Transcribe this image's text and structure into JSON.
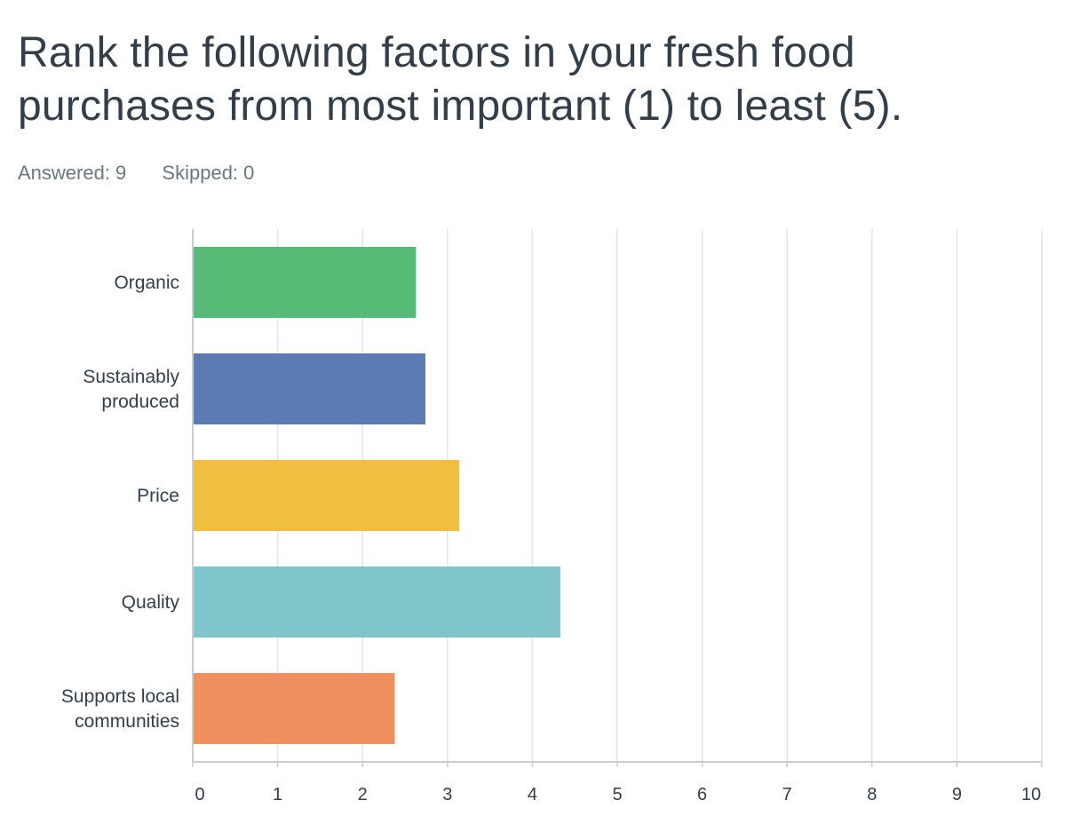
{
  "question": {
    "title": "Rank the following factors in your fresh food purchases from most important (1) to least (5)."
  },
  "stats": {
    "answered": "Answered: 9",
    "skipped": "Skipped: 0"
  },
  "chart_data": {
    "type": "bar",
    "orientation": "horizontal",
    "categories": [
      [
        "Organic"
      ],
      [
        "Sustainably",
        "produced"
      ],
      [
        "Price"
      ],
      [
        "Quality"
      ],
      [
        "Supports local",
        "communities"
      ]
    ],
    "values": [
      2.63,
      2.74,
      3.14,
      4.33,
      2.38
    ],
    "colors": [
      "#57bb77",
      "#5b7bb2",
      "#f0bf42",
      "#80c5ca",
      "#f0905e"
    ],
    "xlim": [
      0,
      10
    ],
    "xticks": [
      "0",
      "1",
      "2",
      "3",
      "4",
      "5",
      "6",
      "7",
      "8",
      "9",
      "10"
    ],
    "grid": true,
    "gridColor": "#e3e5e6",
    "axisColor": "#c9cdd0"
  }
}
